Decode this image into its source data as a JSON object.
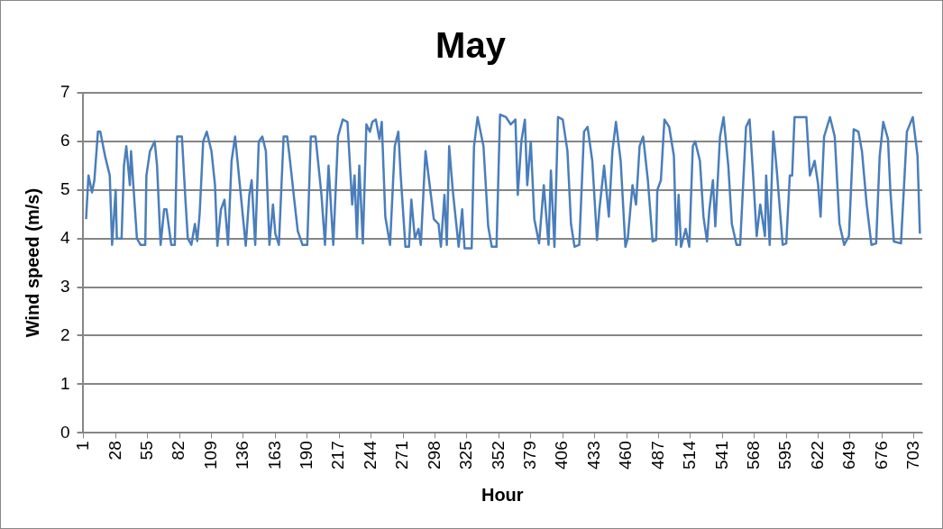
{
  "chart_data": {
    "type": "line",
    "title": "May",
    "xlabel": "Hour",
    "ylabel": "Wind speed (m/s)",
    "color": "#4a7ebb",
    "marker": "none",
    "grid": "y",
    "legend": false,
    "xlim": [
      0,
      710
    ],
    "xticks": [
      1,
      28,
      55,
      82,
      109,
      136,
      163,
      190,
      217,
      244,
      271,
      298,
      325,
      352,
      379,
      406,
      433,
      460,
      487,
      514,
      541,
      568,
      595,
      622,
      649,
      676,
      703
    ],
    "ylim": [
      0,
      7
    ],
    "yticks": [
      0,
      1,
      2,
      3,
      4,
      5,
      6,
      7
    ],
    "x": [
      3,
      5,
      8,
      10,
      13,
      15,
      19,
      23,
      25,
      28,
      29,
      33,
      35,
      37,
      40,
      41,
      46,
      49,
      53,
      54,
      57,
      61,
      63,
      66,
      69,
      71,
      75,
      78,
      80,
      84,
      87,
      89,
      92,
      95,
      97,
      99,
      102,
      105,
      109,
      112,
      114,
      117,
      120,
      123,
      126,
      129,
      131,
      138,
      141,
      143,
      146,
      149,
      152,
      155,
      158,
      161,
      163,
      166,
      170,
      173,
      175,
      179,
      182,
      186,
      190,
      193,
      197,
      202,
      205,
      208,
      212,
      216,
      220,
      224,
      228,
      230,
      232,
      234,
      237,
      240,
      243,
      245,
      248,
      251,
      253,
      256,
      260,
      264,
      267,
      269,
      273,
      276,
      278,
      281,
      284,
      286,
      290,
      293,
      297,
      301,
      303,
      306,
      308,
      310,
      313,
      316,
      318,
      321,
      323,
      329,
      331,
      334,
      339,
      343,
      346,
      350,
      353,
      358,
      362,
      366,
      368,
      371,
      374,
      376,
      379,
      382,
      386,
      390,
      394,
      396,
      399,
      402,
      406,
      410,
      413,
      416,
      420,
      424,
      427,
      431,
      435,
      437,
      441,
      445,
      448,
      451,
      455,
      459,
      461,
      465,
      468,
      471,
      474,
      478,
      482,
      485,
      486,
      489,
      492,
      496,
      500,
      502,
      504,
      506,
      510,
      513,
      516,
      518,
      522,
      525,
      528,
      530,
      533,
      535,
      539,
      542,
      546,
      549,
      553,
      556,
      561,
      564,
      567,
      570,
      573,
      577,
      578,
      581,
      584,
      587,
      592,
      595,
      598,
      600,
      602,
      612,
      615,
      619,
      622,
      624,
      627,
      632,
      636,
      640,
      644,
      648,
      652,
      656,
      659,
      663,
      667,
      671,
      674,
      677,
      681,
      683,
      686,
      692,
      697,
      702,
      706,
      708
    ],
    "values": [
      4.4,
      5.3,
      4.95,
      5.2,
      6.2,
      6.2,
      5.7,
      5.3,
      3.87,
      5.0,
      4.0,
      4.0,
      5.5,
      5.9,
      5.1,
      5.8,
      4.0,
      3.87,
      3.87,
      5.3,
      5.8,
      6.0,
      5.5,
      3.87,
      4.6,
      4.6,
      3.87,
      3.87,
      6.1,
      6.1,
      4.8,
      4.0,
      3.87,
      4.3,
      3.95,
      4.5,
      6.0,
      6.2,
      5.8,
      5.1,
      3.85,
      4.6,
      4.8,
      3.87,
      5.6,
      6.1,
      5.6,
      3.85,
      4.9,
      5.2,
      3.87,
      6.0,
      6.1,
      5.8,
      3.87,
      4.7,
      4.1,
      3.87,
      6.1,
      6.1,
      5.7,
      4.8,
      4.15,
      3.87,
      3.87,
      6.1,
      6.1,
      4.9,
      3.87,
      5.5,
      3.87,
      6.1,
      6.45,
      6.4,
      4.7,
      5.3,
      4.0,
      5.5,
      3.9,
      6.35,
      6.2,
      6.4,
      6.45,
      6.05,
      6.4,
      4.45,
      3.87,
      5.9,
      6.2,
      5.3,
      3.83,
      3.83,
      4.8,
      4.0,
      4.2,
      3.87,
      5.8,
      5.2,
      4.4,
      4.3,
      3.83,
      4.9,
      3.87,
      5.9,
      5.0,
      4.3,
      3.83,
      4.6,
      3.8,
      3.8,
      5.9,
      6.5,
      5.9,
      4.25,
      3.83,
      3.83,
      6.55,
      6.5,
      6.35,
      6.45,
      4.9,
      6.0,
      6.45,
      5.1,
      6.0,
      4.4,
      3.9,
      5.1,
      3.87,
      5.4,
      3.83,
      6.5,
      6.45,
      5.8,
      4.3,
      3.83,
      3.87,
      6.2,
      6.3,
      5.6,
      3.97,
      4.6,
      5.5,
      4.45,
      5.8,
      6.4,
      5.6,
      3.83,
      4.0,
      5.1,
      4.7,
      5.9,
      6.1,
      5.2,
      3.94,
      3.97,
      5.0,
      5.2,
      6.45,
      6.3,
      5.7,
      3.87,
      4.9,
      3.83,
      4.2,
      3.83,
      5.9,
      6.0,
      5.6,
      4.45,
      3.94,
      4.6,
      5.2,
      4.25,
      6.1,
      6.5,
      5.5,
      4.3,
      3.87,
      3.87,
      6.3,
      6.45,
      5.3,
      4.05,
      4.7,
      4.05,
      5.3,
      3.87,
      6.2,
      5.4,
      3.87,
      3.9,
      5.3,
      5.3,
      6.5,
      6.5,
      5.3,
      5.6,
      5.1,
      4.45,
      6.1,
      6.5,
      6.1,
      4.3,
      3.87,
      4.05,
      6.25,
      6.2,
      5.8,
      4.7,
      3.87,
      3.9,
      5.7,
      6.4,
      6.05,
      5.0,
      3.94,
      3.9,
      6.2,
      6.5,
      5.7,
      4.1
    ]
  }
}
